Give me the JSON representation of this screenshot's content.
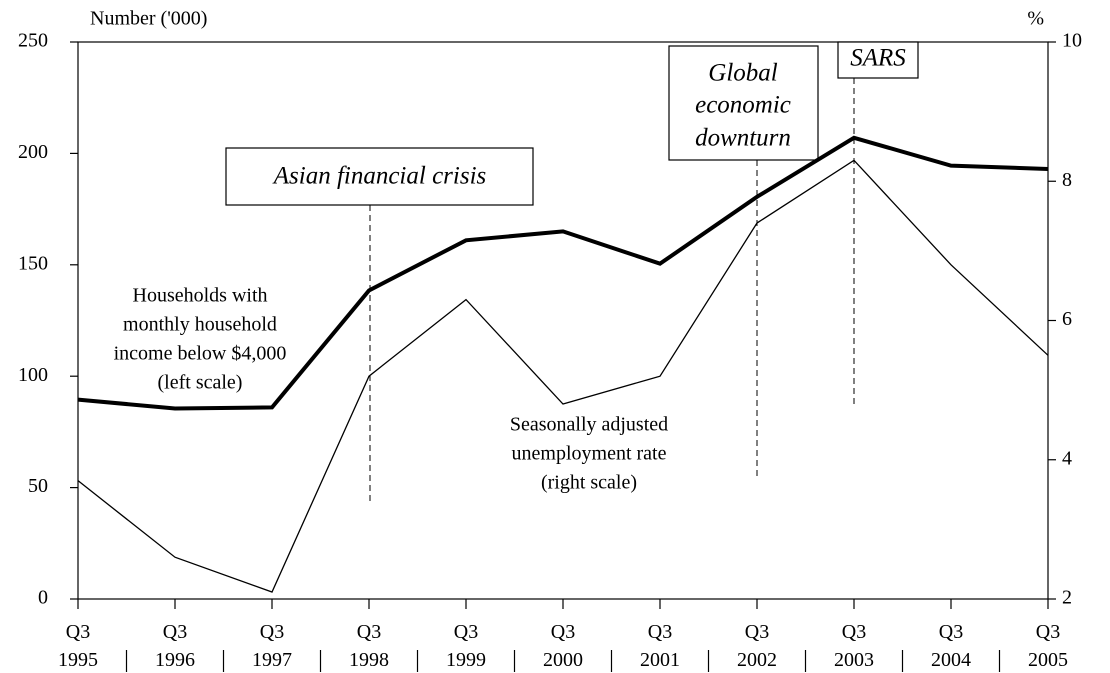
{
  "chart_data": {
    "type": "line",
    "y_label": "Number ('000)",
    "y2_label": "%",
    "categories": [
      "Q3 1995",
      "Q3 1996",
      "Q3 1997",
      "Q3 1998",
      "Q3 1999",
      "Q3 2000",
      "Q3 2001",
      "Q3 2002",
      "Q3 2003",
      "Q3 2004",
      "Q3 2005"
    ],
    "series": [
      {
        "label_lines": [
          "Households with",
          "monthly household",
          "income below $4,000",
          "(left scale)"
        ],
        "color": "#000000",
        "width": 4,
        "values": [
          89.5,
          85.5,
          86,
          138.5,
          161,
          165,
          150.5,
          180.5,
          207,
          194.5,
          193
        ]
      },
      {
        "label_lines": [
          "Seasonally adjusted",
          "unemployment rate",
          "(right scale)"
        ],
        "color": "#000000",
        "width": 1.3,
        "axis": "y2",
        "values": [
          3.7,
          2.6,
          2.1,
          5.2,
          6.3,
          4.8,
          5.2,
          7.4,
          8.3,
          6.8,
          5.5
        ]
      }
    ],
    "ylim": [
      0,
      250
    ],
    "yticks": [
      0,
      50,
      100,
      150,
      200,
      250
    ],
    "y2lim": [
      2,
      10
    ],
    "y2ticks": [
      2,
      4,
      6,
      8,
      10
    ],
    "annotations": {
      "asian": [
        "Asian financial crisis"
      ],
      "global": [
        "Global",
        "economic",
        "downturn"
      ],
      "sars": [
        "SARS"
      ]
    }
  }
}
